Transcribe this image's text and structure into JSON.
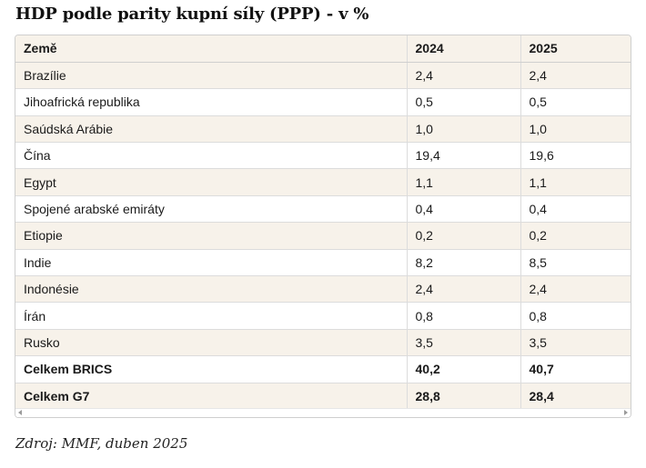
{
  "title": "HDP podle parity kupní síly (PPP) - v %",
  "table": {
    "headers": [
      "Země",
      "2024",
      "2025"
    ],
    "rows": [
      {
        "country": "Brazílie",
        "y2024": "2,4",
        "y2025": "2,4",
        "bold": false
      },
      {
        "country": "Jihoafrická republika",
        "y2024": "0,5",
        "y2025": "0,5",
        "bold": false
      },
      {
        "country": "Saúdská Arábie",
        "y2024": "1,0",
        "y2025": "1,0",
        "bold": false
      },
      {
        "country": "Čína",
        "y2024": "19,4",
        "y2025": "19,6",
        "bold": false
      },
      {
        "country": "Egypt",
        "y2024": "1,1",
        "y2025": "1,1",
        "bold": false
      },
      {
        "country": "Spojené arabské emiráty",
        "y2024": "0,4",
        "y2025": "0,4",
        "bold": false
      },
      {
        "country": "Etiopie",
        "y2024": "0,2",
        "y2025": "0,2",
        "bold": false
      },
      {
        "country": "Indie",
        "y2024": "8,2",
        "y2025": "8,5",
        "bold": false
      },
      {
        "country": "Indonésie",
        "y2024": "2,4",
        "y2025": "2,4",
        "bold": false
      },
      {
        "country": "Írán",
        "y2024": "0,8",
        "y2025": "0,8",
        "bold": false
      },
      {
        "country": "Rusko",
        "y2024": "3,5",
        "y2025": "3,5",
        "bold": false
      },
      {
        "country": "Celkem BRICS",
        "y2024": "40,2",
        "y2025": "40,7",
        "bold": true
      },
      {
        "country": "Celkem G7",
        "y2024": "28,8",
        "y2025": "28,4",
        "bold": true
      }
    ]
  },
  "source": "Zdroj: MMF, duben 2025",
  "colors": {
    "stripe": "#f7f2ea",
    "border": "#dcdcdc"
  }
}
